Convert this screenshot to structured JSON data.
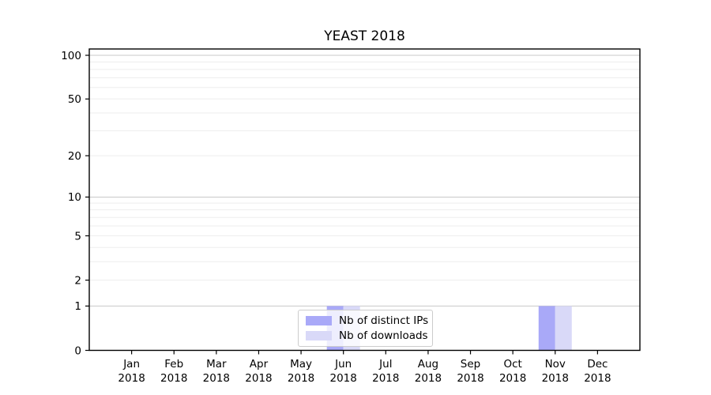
{
  "title": "YEAST 2018",
  "colors": {
    "distinct_ips_bar": "#a9a9f8",
    "downloads_bar": "#d9d9f8",
    "grid_minor": "#ededed",
    "grid_major": "#c8c8c8",
    "axis": "#000000",
    "legend_border": "#cccccc"
  },
  "legend": {
    "items": [
      {
        "label": "Nb of distinct IPs",
        "color_key": "distinct_ips_bar"
      },
      {
        "label": "Nb of downloads",
        "color_key": "downloads_bar"
      }
    ],
    "position": "lower center, inside plot"
  },
  "chart_data": {
    "type": "bar",
    "title": "YEAST 2018",
    "categories": [
      "Jan 2018",
      "Feb 2018",
      "Mar 2018",
      "Apr 2018",
      "May 2018",
      "Jun 2018",
      "Jul 2018",
      "Aug 2018",
      "Sep 2018",
      "Oct 2018",
      "Nov 2018",
      "Dec 2018"
    ],
    "series": [
      {
        "name": "Nb of distinct IPs",
        "values": [
          0,
          0,
          0,
          0,
          0,
          1,
          0,
          0,
          0,
          0,
          1,
          0
        ]
      },
      {
        "name": "Nb of downloads",
        "values": [
          0,
          0,
          0,
          0,
          0,
          1,
          0,
          0,
          0,
          0,
          1,
          0
        ]
      }
    ],
    "xlabel": "",
    "ylabel": "",
    "y_scale": "log10(1+v)",
    "y_ticks": [
      0,
      1,
      2,
      5,
      10,
      20,
      50,
      100
    ],
    "grid_major_values": [
      1,
      10,
      100
    ],
    "grid_minor_values": [
      2,
      3,
      4,
      5,
      6,
      7,
      8,
      9,
      20,
      30,
      40,
      50,
      60,
      70,
      80,
      90
    ],
    "ylim": [
      0,
      110
    ],
    "grid": "on"
  }
}
